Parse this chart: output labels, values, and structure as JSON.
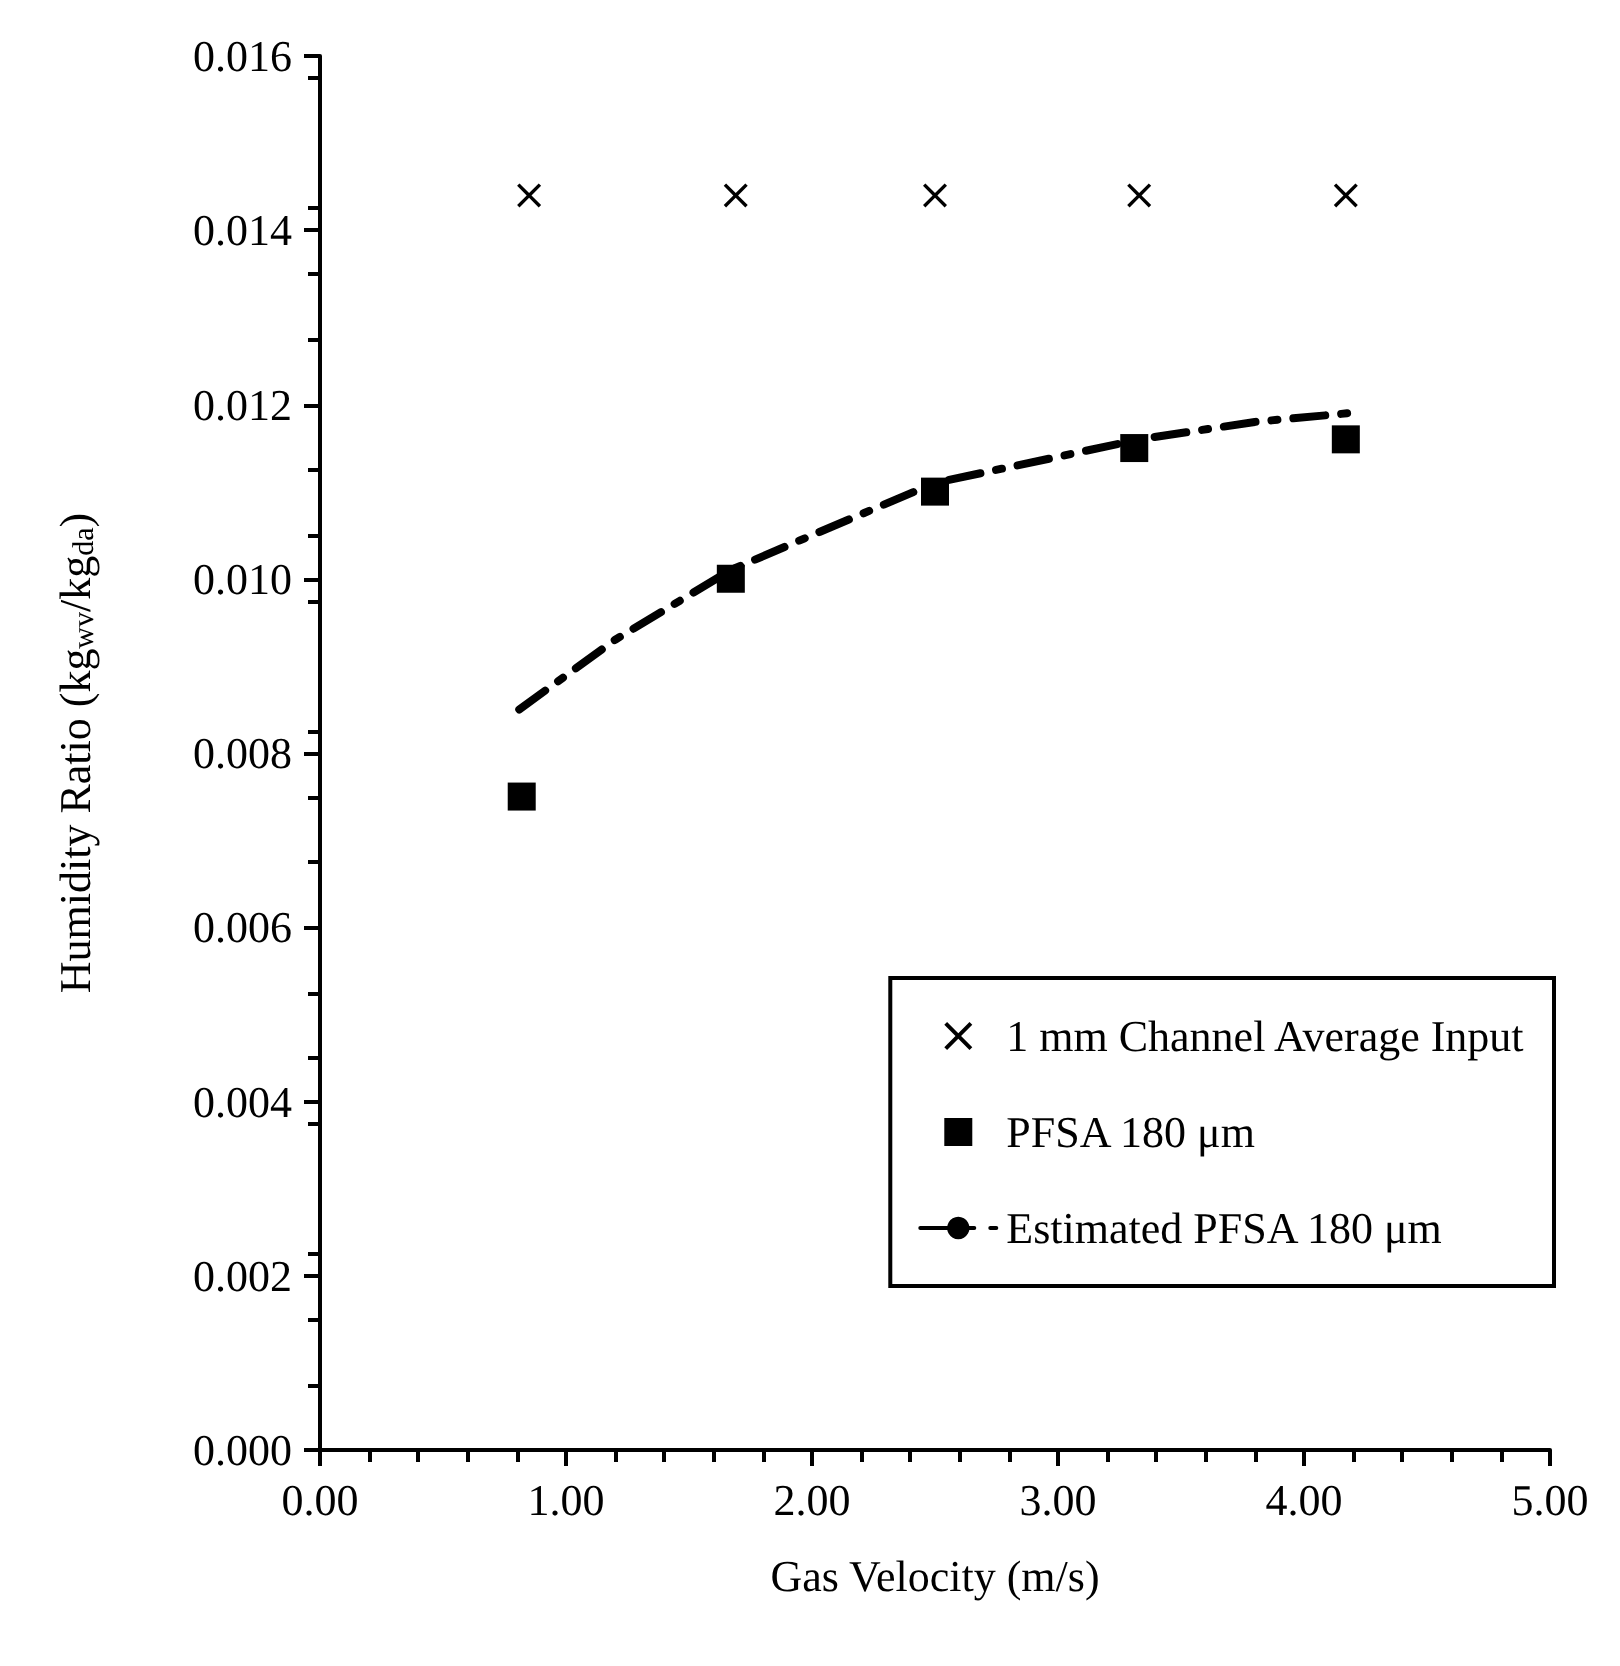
{
  "chart_data": {
    "type": "scatter",
    "xlabel": "Gas Velocity (m/s)",
    "ylabel": "Humidity Ratio (kg$_{wv}$/kg$_{da}$)",
    "xlim": [
      0,
      5
    ],
    "xticks": [
      {
        "value": 0,
        "label": "0.00"
      },
      {
        "value": 1,
        "label": "1.00"
      },
      {
        "value": 2,
        "label": "2.00"
      },
      {
        "value": 3,
        "label": "3.00"
      },
      {
        "value": 4,
        "label": "4.00"
      },
      {
        "value": 5,
        "label": "5.00"
      }
    ],
    "ylim": [
      0,
      0.016
    ],
    "yticks": [
      {
        "value": 0,
        "label": "0.000"
      },
      {
        "value": 0.002,
        "label": "0.002"
      },
      {
        "value": 0.004,
        "label": "0.004"
      },
      {
        "value": 0.006,
        "label": "0.006"
      },
      {
        "value": 0.008,
        "label": "0.008"
      },
      {
        "value": 0.01,
        "label": "0.010"
      },
      {
        "value": 0.012,
        "label": "0.012"
      },
      {
        "value": 0.014,
        "label": "0.014"
      },
      {
        "value": 0.016,
        "label": "0.016"
      }
    ],
    "grid": false,
    "legend": "bottom right",
    "series": [
      {
        "name": "1 mm Channel Average Input",
        "marker": "cross",
        "color": "#000000",
        "x": [
          0.85,
          1.69,
          2.5,
          3.33,
          4.17
        ],
        "values": [
          0.0144,
          0.0144,
          0.0144,
          0.0144,
          0.0144
        ]
      },
      {
        "name": "PFSA 180 μm",
        "marker": "square",
        "color": "#000000",
        "x": [
          0.82,
          1.67,
          2.5,
          3.31,
          4.17
        ],
        "values": [
          0.0075,
          0.01,
          0.011,
          0.0115,
          0.0116
        ]
      },
      {
        "name": "Estimated PFSA 180 μm",
        "type": "line",
        "marker": "none",
        "line_style": "dashed",
        "color": "#000000",
        "x": [
          0.81,
          1.2,
          1.67,
          2.0,
          2.5,
          3.0,
          3.33,
          3.8,
          4.18
        ],
        "values": [
          0.0085,
          0.0093,
          0.0101,
          0.0105,
          0.0111,
          0.0114,
          0.0116,
          0.0118,
          0.0119
        ]
      }
    ]
  }
}
